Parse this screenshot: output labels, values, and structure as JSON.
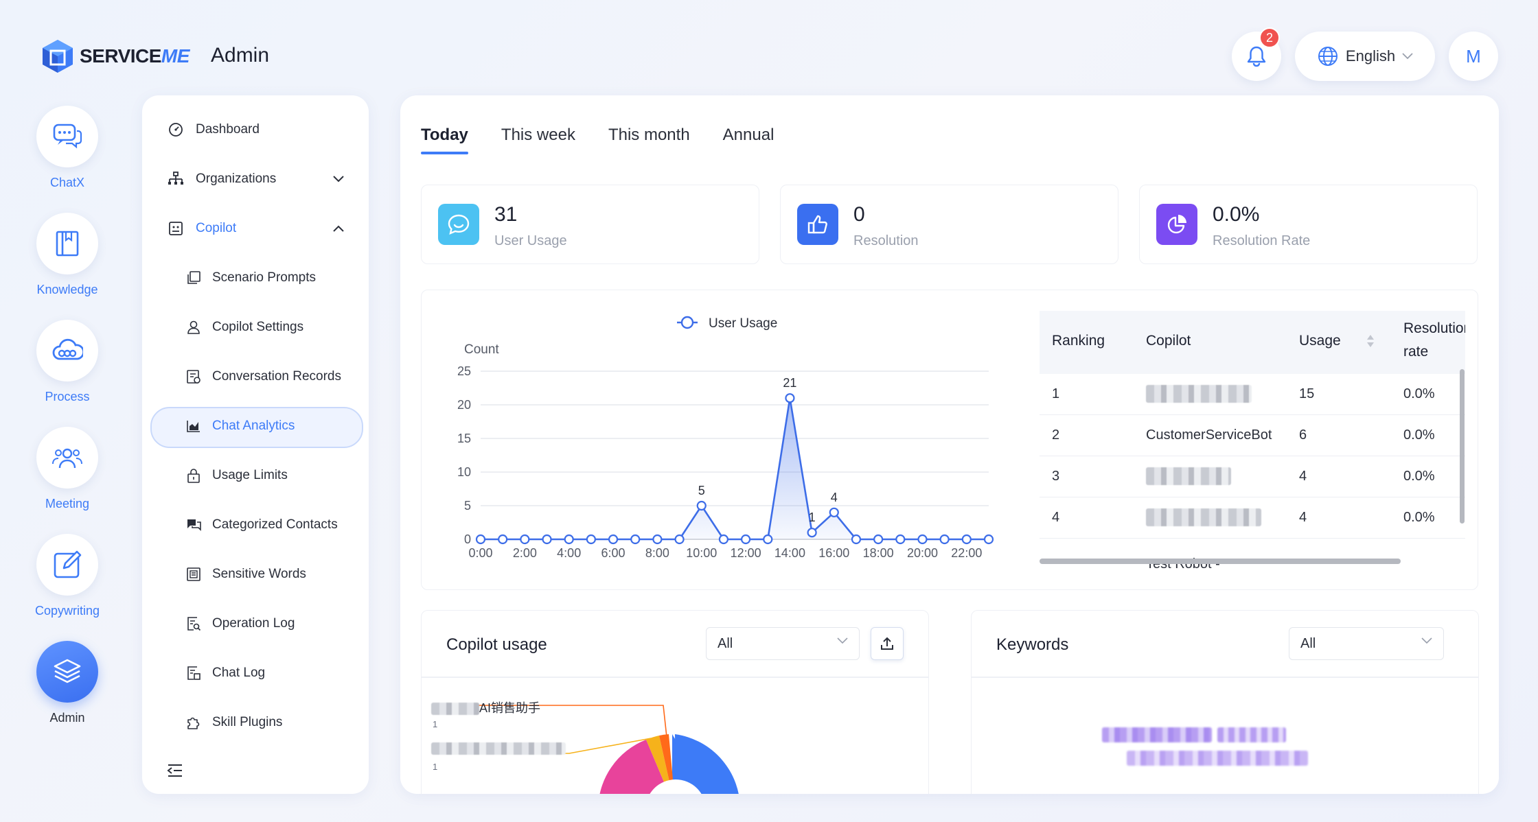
{
  "brand": {
    "logo_text_a": "SERVICE",
    "logo_text_b": "ME",
    "app_name": "Admin"
  },
  "header": {
    "notification_count": "2",
    "language": "English",
    "avatar_initial": "M"
  },
  "rail": [
    {
      "label": "ChatX",
      "icon": "chat-bubbles-icon"
    },
    {
      "label": "Knowledge",
      "icon": "book-icon"
    },
    {
      "label": "Process",
      "icon": "cloud-flow-icon"
    },
    {
      "label": "Meeting",
      "icon": "people-icon"
    },
    {
      "label": "Copywriting",
      "icon": "edit-icon"
    },
    {
      "label": "Admin",
      "icon": "layers-icon"
    }
  ],
  "menu": {
    "dashboard": "Dashboard",
    "organizations": "Organizations",
    "copilot": "Copilot",
    "sub": [
      "Scenario Prompts",
      "Copilot Settings",
      "Conversation Records",
      "Chat Analytics",
      "Usage Limits",
      "Categorized Contacts",
      "Sensitive Words",
      "Operation Log",
      "Chat Log",
      "Skill Plugins"
    ]
  },
  "tabs": [
    "Today",
    "This week",
    "This month",
    "Annual"
  ],
  "kpis": [
    {
      "value": "31",
      "label": "User Usage",
      "color": "#4cc2f2"
    },
    {
      "value": "0",
      "label": "Resolution",
      "color": "#3a6ff0"
    },
    {
      "value": "0.0%",
      "label": "Resolution Rate",
      "color": "#7b4cf2"
    }
  ],
  "chart_data": {
    "type": "line",
    "legend": "User Usage",
    "ylabel": "Count",
    "ylim": [
      0,
      25
    ],
    "yticks": [
      "0",
      "5",
      "10",
      "15",
      "20",
      "25"
    ],
    "xticks": [
      "0:00",
      "2:00",
      "4:00",
      "6:00",
      "8:00",
      "10:00",
      "12:00",
      "14:00",
      "16:00",
      "18:00",
      "20:00",
      "22:00"
    ],
    "x": [
      "0:00",
      "1:00",
      "2:00",
      "3:00",
      "4:00",
      "5:00",
      "6:00",
      "7:00",
      "8:00",
      "9:00",
      "10:00",
      "11:00",
      "12:00",
      "13:00",
      "14:00",
      "15:00",
      "16:00",
      "17:00",
      "18:00",
      "19:00",
      "20:00",
      "21:00",
      "22:00",
      "23:00"
    ],
    "values": [
      0,
      0,
      0,
      0,
      0,
      0,
      0,
      0,
      0,
      0,
      5,
      0,
      0,
      0,
      21,
      1,
      4,
      0,
      0,
      0,
      0,
      0,
      0,
      0
    ],
    "labels": {
      "10": "5",
      "14": "21",
      "15": "1",
      "16": "4"
    }
  },
  "ranking": {
    "headers": {
      "rank": "Ranking",
      "copilot": "Copilot",
      "usage": "Usage",
      "rate_a": "Resolution",
      "rate_b": "rate"
    },
    "rows": [
      {
        "rank": "1",
        "copilot": "",
        "usage": "15",
        "rate": "0.0%"
      },
      {
        "rank": "2",
        "copilot": "CustomerServiceBot",
        "usage": "6",
        "rate": "0.0%"
      },
      {
        "rank": "3",
        "copilot": "",
        "usage": "4",
        "rate": "0.0%"
      },
      {
        "rank": "4",
        "copilot": "",
        "usage": "4",
        "rate": "0.0%"
      }
    ],
    "partial_row": "Test Robot -"
  },
  "copilot_usage": {
    "title": "Copilot usage",
    "filter": "All",
    "pie_label_1": "AI销售助手",
    "pie_num_1": "1",
    "pie_num_2": "1"
  },
  "keywords": {
    "title": "Keywords",
    "filter": "All"
  }
}
